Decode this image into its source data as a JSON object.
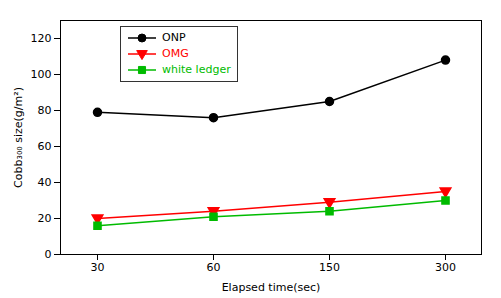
{
  "chart_data": {
    "type": "line",
    "categories": [
      "30",
      "60",
      "150",
      "300"
    ],
    "series": [
      {
        "name": "ONP",
        "color": "#000000",
        "marker": "circle",
        "line_style": "solid",
        "values": [
          79,
          76,
          85,
          108
        ]
      },
      {
        "name": "OMG",
        "color": "#ff0000",
        "marker": "triangle-down",
        "line_style": "solid",
        "values": [
          20,
          24,
          29,
          35
        ]
      },
      {
        "name": "white ledger",
        "color": "#00bb00",
        "marker": "square",
        "line_style": "solid",
        "values": [
          16,
          21,
          24,
          30
        ]
      }
    ],
    "xlabel": "Elapsed time(sec)",
    "ylabel": "Cobb₃₀₀ size(g/m²)",
    "ylim": [
      0,
      130
    ],
    "yticks": [
      0,
      20,
      40,
      60,
      80,
      100,
      120
    ],
    "grid": false,
    "legend": "upper left"
  }
}
